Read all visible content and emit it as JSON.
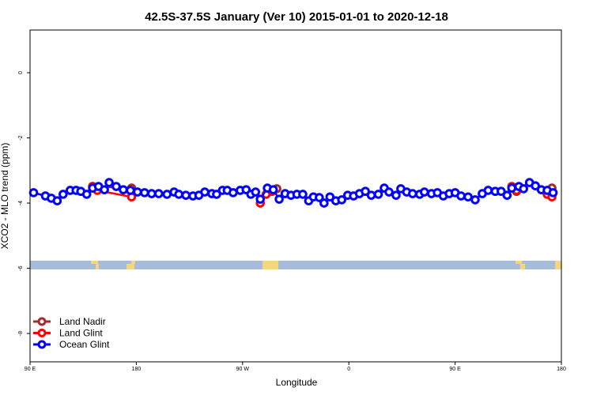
{
  "chart_data": {
    "type": "line",
    "title": "42.5S-37.5S January (Ver 10)   2015-01-01 to 2020-12-18",
    "x_label": "Longitude",
    "y_label": "XCO2 - MLO trend (ppm)",
    "xlim": [
      90,
      540
    ],
    "xticks": [
      {
        "value": 90,
        "label": "90 E"
      },
      180,
      {
        "value": 270,
        "label": "90 W"
      },
      {
        "value": 360,
        "label": "0"
      },
      {
        "value": 450,
        "label": "90 E"
      },
      {
        "value": 540,
        "label": "180"
      }
    ],
    "ylim": [
      -8.87,
      1.31
    ],
    "yticks": [
      0,
      -2,
      -4,
      -6,
      -8
    ],
    "legend": "bottom-left",
    "series": [
      {
        "name": "Land Nadir",
        "color": "#a52a2a",
        "x": [
          143,
          176,
          null,
          299,
          null,
          502,
          null,
          532
        ],
        "values": [
          -3.49,
          -3.54,
          null,
          -3.56,
          null,
          -3.64,
          null,
          -3.54
        ]
      },
      {
        "name": "Land Glint",
        "color": "#ff0000",
        "x": [
          143,
          147,
          176,
          null,
          285,
          290,
          295,
          null,
          498,
          502,
          null,
          528,
          532
        ],
        "values": [
          -3.49,
          -3.61,
          -3.81,
          null,
          -4.0,
          -3.73,
          -3.64,
          null,
          -3.49,
          -3.61,
          null,
          -3.73,
          -3.81
        ]
      },
      {
        "name": "Ocean Glint",
        "color": "#0000ff",
        "x": [
          93,
          103,
          108,
          113,
          118,
          124,
          129,
          133,
          138,
          143,
          148,
          153,
          157,
          163,
          169,
          175,
          181,
          187,
          193,
          199,
          206,
          212,
          216,
          222,
          228,
          233,
          238,
          244,
          248,
          253,
          257,
          262,
          268,
          273,
          277,
          281,
          285,
          291,
          296,
          301,
          306,
          311,
          316,
          321,
          326,
          330,
          335,
          339,
          344,
          349,
          354,
          359,
          364,
          369,
          374,
          379,
          385,
          390,
          394,
          400,
          404,
          409,
          414,
          420,
          424,
          430,
          435,
          440,
          445,
          450,
          455,
          461,
          467,
          473,
          478,
          484,
          489,
          494,
          498,
          504,
          508,
          513,
          518,
          523,
          528,
          533
        ],
        "values": [
          -3.68,
          -3.78,
          -3.85,
          -3.93,
          -3.73,
          -3.61,
          -3.61,
          -3.64,
          -3.73,
          -3.54,
          -3.49,
          -3.59,
          -3.37,
          -3.49,
          -3.59,
          -3.61,
          -3.66,
          -3.68,
          -3.71,
          -3.71,
          -3.73,
          -3.66,
          -3.73,
          -3.76,
          -3.78,
          -3.76,
          -3.66,
          -3.71,
          -3.73,
          -3.61,
          -3.61,
          -3.68,
          -3.61,
          -3.59,
          -3.73,
          -3.66,
          -3.88,
          -3.54,
          -3.59,
          -3.88,
          -3.71,
          -3.76,
          -3.73,
          -3.73,
          -3.93,
          -3.81,
          -3.83,
          -4.0,
          -3.81,
          -3.93,
          -3.9,
          -3.76,
          -3.78,
          -3.71,
          -3.64,
          -3.76,
          -3.73,
          -3.54,
          -3.66,
          -3.76,
          -3.56,
          -3.66,
          -3.71,
          -3.73,
          -3.66,
          -3.71,
          -3.68,
          -3.78,
          -3.71,
          -3.68,
          -3.78,
          -3.81,
          -3.9,
          -3.71,
          -3.61,
          -3.64,
          -3.64,
          -3.76,
          -3.54,
          -3.49,
          -3.56,
          -3.37,
          -3.47,
          -3.59,
          -3.61,
          -3.68
        ]
      }
    ]
  }
}
